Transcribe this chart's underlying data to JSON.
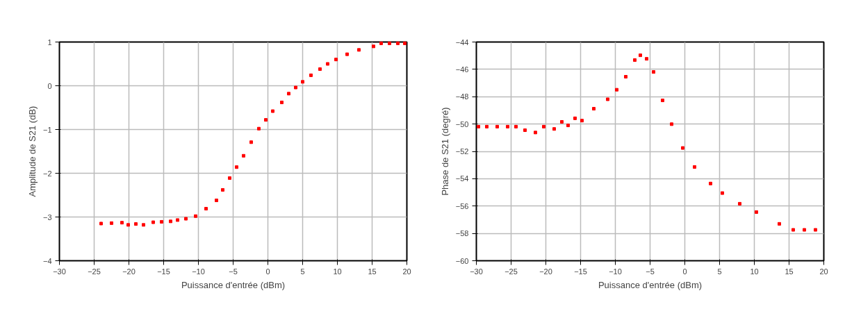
{
  "chart_data": [
    {
      "type": "scatter",
      "xlabel": "Puissance d'entrée (dBm)",
      "ylabel": "Amplitude de S21 (dB)",
      "marker": "square",
      "grid": true,
      "xlim": [
        -30,
        20
      ],
      "xticks": [
        -30,
        -25,
        -20,
        -15,
        -10,
        -5,
        0,
        5,
        10,
        15,
        20
      ],
      "ylim": [
        -4,
        1
      ],
      "yticks": [
        1,
        0,
        -1,
        -2,
        -3,
        -4
      ],
      "series": [
        {
          "color": "#ff0000",
          "x": [
            -24.0,
            -22.5,
            -21.0,
            -20.1,
            -19.0,
            -17.9,
            -16.5,
            -15.3,
            -14.0,
            -13.0,
            -11.8,
            -10.4,
            -8.9,
            -7.4,
            -6.5,
            -5.5,
            -4.5,
            -3.5,
            -2.4,
            -1.3,
            -0.3,
            0.7,
            2.0,
            3.0,
            4.0,
            5.0,
            6.2,
            7.5,
            8.6,
            9.8,
            11.4,
            13.1,
            15.2,
            16.3,
            17.5,
            18.7,
            19.7
          ],
          "values": [
            -3.15,
            -3.14,
            -3.13,
            -3.18,
            -3.16,
            -3.18,
            -3.12,
            -3.11,
            -3.1,
            -3.07,
            -3.04,
            -2.98,
            -2.81,
            -2.62,
            -2.38,
            -2.11,
            -1.86,
            -1.6,
            -1.29,
            -0.98,
            -0.78,
            -0.58,
            -0.38,
            -0.18,
            -0.04,
            0.09,
            0.24,
            0.38,
            0.5,
            0.6,
            0.72,
            0.82,
            0.9,
            0.97,
            0.97,
            0.97,
            0.97
          ]
        }
      ]
    },
    {
      "type": "scatter",
      "xlabel": "Puissance d'entrée (dBm)",
      "ylabel": "Phase de S21 (degré)",
      "marker": "square",
      "grid": true,
      "xlim": [
        -30,
        20
      ],
      "xticks": [
        -30,
        -25,
        -20,
        -15,
        -10,
        -5,
        0,
        5,
        10,
        15,
        20
      ],
      "ylim": [
        -60,
        -44
      ],
      "yticks": [
        -44,
        -46,
        -48,
        -50,
        -52,
        -54,
        -56,
        -58,
        -60
      ],
      "series": [
        {
          "color": "#ff0000",
          "x": [
            -29.7,
            -28.5,
            -27.0,
            -25.5,
            -24.3,
            -23.0,
            -21.5,
            -20.3,
            -18.8,
            -17.7,
            -16.8,
            -15.8,
            -14.8,
            -13.1,
            -11.1,
            -9.8,
            -8.5,
            -7.2,
            -6.4,
            -5.5,
            -4.5,
            -3.2,
            -1.9,
            -0.3,
            1.4,
            3.7,
            5.4,
            7.9,
            10.3,
            13.6,
            15.6,
            17.2,
            18.8
          ],
          "values": [
            -50.19,
            -50.19,
            -50.19,
            -50.19,
            -50.19,
            -50.45,
            -50.62,
            -50.19,
            -50.36,
            -49.84,
            -50.1,
            -49.58,
            -49.75,
            -48.88,
            -48.19,
            -47.49,
            -46.54,
            -45.32,
            -44.97,
            -45.23,
            -46.19,
            -48.27,
            -50.01,
            -51.75,
            -53.14,
            -54.35,
            -55.05,
            -55.83,
            -56.44,
            -57.3,
            -57.74,
            -57.74,
            -57.74
          ]
        }
      ]
    }
  ]
}
